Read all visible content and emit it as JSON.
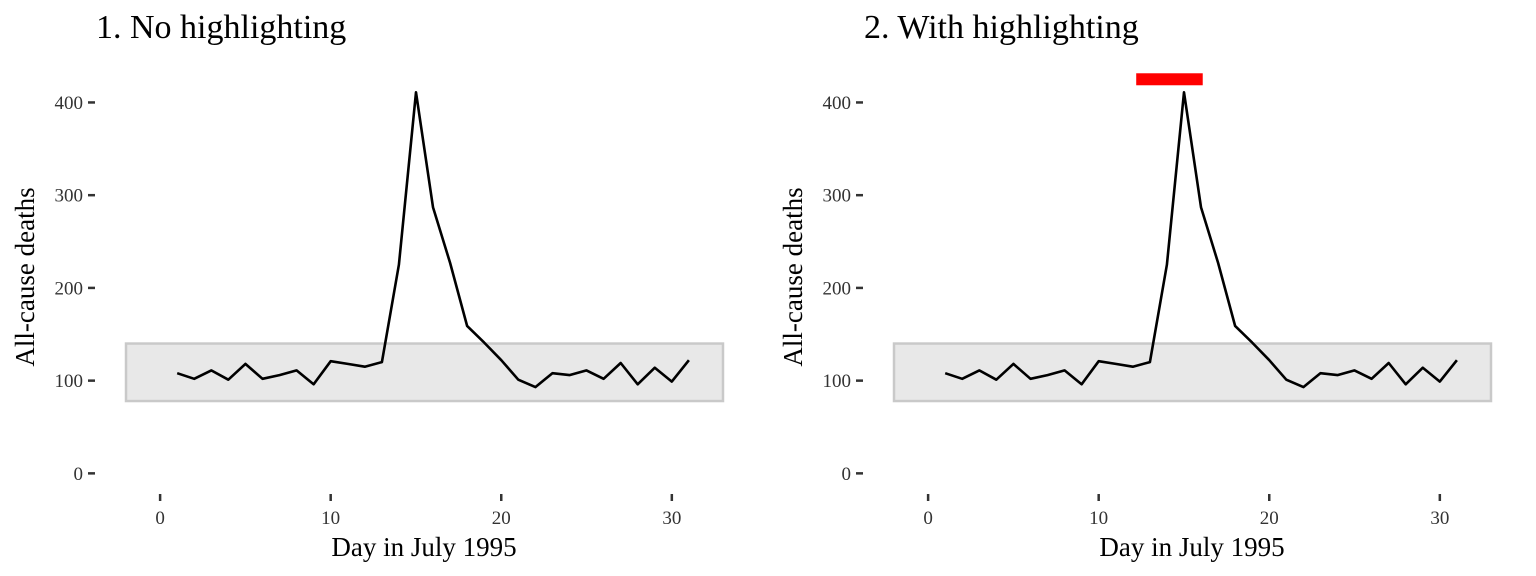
{
  "chart_data": [
    {
      "type": "line",
      "title": "1. No highlighting",
      "xlabel": "Day in July 1995",
      "ylabel": "All-cause deaths",
      "xlim": [
        -2,
        33
      ],
      "ylim": [
        -5,
        435
      ],
      "x_ticks": [
        0,
        10,
        20,
        30
      ],
      "y_ticks": [
        0,
        100,
        200,
        300,
        400
      ],
      "grid": false,
      "band": {
        "y_min": 78,
        "y_max": 140,
        "x_min": -2,
        "x_max": 33,
        "color": "#e8e8e8"
      },
      "highlight": null,
      "series": [
        {
          "x": [
            1,
            2,
            3,
            4,
            5,
            6,
            7,
            8,
            9,
            10,
            11,
            12,
            13,
            14,
            15,
            16,
            17,
            18,
            19,
            20,
            21,
            22,
            23,
            24,
            25,
            26,
            27,
            28,
            29,
            30,
            31
          ],
          "values": [
            108,
            102,
            111,
            101,
            118,
            102,
            106,
            111,
            96,
            121,
            118,
            115,
            120,
            225,
            411,
            287,
            227,
            159,
            141,
            122,
            101,
            93,
            108,
            106,
            111,
            102,
            119,
            96,
            114,
            99,
            122
          ]
        }
      ]
    },
    {
      "type": "line",
      "title": "2. With highlighting",
      "xlabel": "Day in July 1995",
      "ylabel": "All-cause deaths",
      "xlim": [
        -2,
        33
      ],
      "ylim": [
        -5,
        435
      ],
      "x_ticks": [
        0,
        10,
        20,
        30
      ],
      "y_ticks": [
        0,
        100,
        200,
        300,
        400
      ],
      "grid": false,
      "band": {
        "y_min": 78,
        "y_max": 140,
        "x_min": -2,
        "x_max": 33,
        "color": "#e8e8e8"
      },
      "highlight": {
        "x_start": 12.2,
        "x_end": 16.1,
        "y": 425,
        "color": "#ff0000"
      },
      "series": [
        {
          "x": [
            1,
            2,
            3,
            4,
            5,
            6,
            7,
            8,
            9,
            10,
            11,
            12,
            13,
            14,
            15,
            16,
            17,
            18,
            19,
            20,
            21,
            22,
            23,
            24,
            25,
            26,
            27,
            28,
            29,
            30,
            31
          ],
          "values": [
            108,
            102,
            111,
            101,
            118,
            102,
            106,
            111,
            96,
            121,
            118,
            115,
            120,
            225,
            411,
            287,
            227,
            159,
            141,
            122,
            101,
            93,
            108,
            106,
            111,
            102,
            119,
            96,
            114,
            99,
            122
          ]
        }
      ]
    }
  ]
}
